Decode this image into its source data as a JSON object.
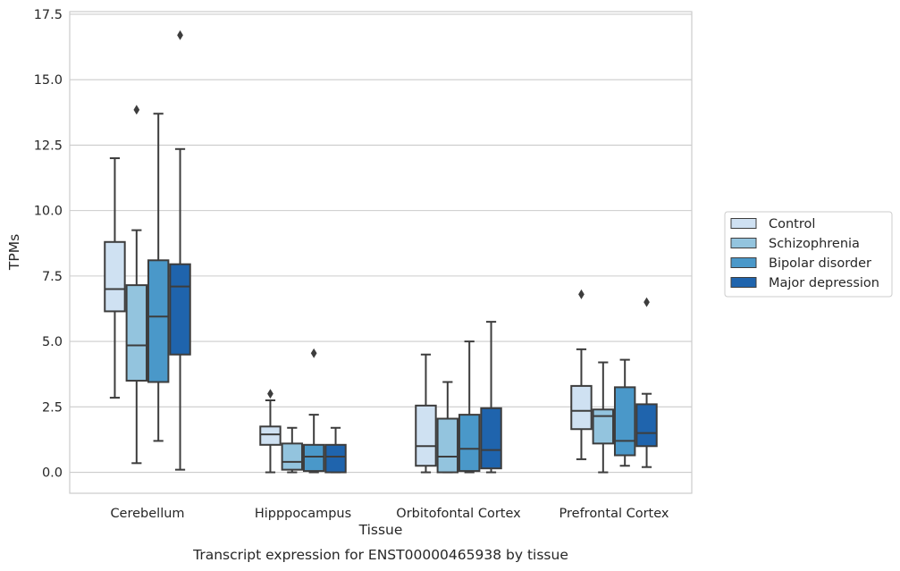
{
  "chart_data": {
    "type": "box",
    "title": "",
    "caption": "Transcript expression for ENST00000465938 by tissue",
    "xlabel": "Tissue",
    "ylabel": "TPMs",
    "ylim": [
      -0.8,
      17.6
    ],
    "yticks": [
      "0.0",
      "2.5",
      "5.0",
      "7.5",
      "10.0",
      "12.5",
      "15.0",
      "17.5"
    ],
    "ytick_values": [
      0,
      2.5,
      5,
      7.5,
      10,
      12.5,
      15,
      17.5
    ],
    "grid": "horizontal",
    "legend_placement": "center-right, outside",
    "categories": [
      "Cerebellum",
      "Hipppocampus",
      "Orbitofontal Cortex",
      "Prefrontal Cortex"
    ],
    "series": [
      {
        "name": "Control",
        "color": "#cfe1f2",
        "boxes": [
          {
            "whisker_low": 2.85,
            "q1": 6.15,
            "median": 7.0,
            "q3": 8.8,
            "whisker_high": 12.0,
            "outliers": []
          },
          {
            "whisker_low": 0.0,
            "q1": 1.05,
            "median": 1.45,
            "q3": 1.75,
            "whisker_high": 2.75,
            "outliers": [
              3.0
            ]
          },
          {
            "whisker_low": 0.0,
            "q1": 0.25,
            "median": 1.0,
            "q3": 2.55,
            "whisker_high": 4.5,
            "outliers": []
          },
          {
            "whisker_low": 0.5,
            "q1": 1.65,
            "median": 2.35,
            "q3": 3.3,
            "whisker_high": 4.7,
            "outliers": [
              6.8
            ]
          }
        ]
      },
      {
        "name": "Schizophrenia",
        "color": "#93c4de",
        "boxes": [
          {
            "whisker_low": 0.35,
            "q1": 3.5,
            "median": 4.85,
            "q3": 7.15,
            "whisker_high": 9.25,
            "outliers": [
              13.85
            ]
          },
          {
            "whisker_low": 0.0,
            "q1": 0.1,
            "median": 0.4,
            "q3": 1.1,
            "whisker_high": 1.7,
            "outliers": []
          },
          {
            "whisker_low": 0.0,
            "q1": 0.0,
            "median": 0.6,
            "q3": 2.05,
            "whisker_high": 3.45,
            "outliers": []
          },
          {
            "whisker_low": 0.0,
            "q1": 1.1,
            "median": 2.15,
            "q3": 2.4,
            "whisker_high": 4.2,
            "outliers": []
          }
        ]
      },
      {
        "name": "Bipolar disorder",
        "color": "#4a98c9",
        "boxes": [
          {
            "whisker_low": 1.2,
            "q1": 3.45,
            "median": 5.95,
            "q3": 8.1,
            "whisker_high": 13.7,
            "outliers": []
          },
          {
            "whisker_low": 0.0,
            "q1": 0.05,
            "median": 0.6,
            "q3": 1.05,
            "whisker_high": 2.2,
            "outliers": [
              4.55
            ]
          },
          {
            "whisker_low": 0.0,
            "q1": 0.05,
            "median": 0.9,
            "q3": 2.2,
            "whisker_high": 5.0,
            "outliers": []
          },
          {
            "whisker_low": 0.25,
            "q1": 0.65,
            "median": 1.2,
            "q3": 3.25,
            "whisker_high": 4.3,
            "outliers": []
          }
        ]
      },
      {
        "name": "Major depression",
        "color": "#1f64ad",
        "boxes": [
          {
            "whisker_low": 0.1,
            "q1": 4.5,
            "median": 7.1,
            "q3": 7.95,
            "whisker_high": 12.35,
            "outliers": [
              16.7
            ]
          },
          {
            "whisker_low": 0.0,
            "q1": 0.0,
            "median": 0.6,
            "q3": 1.05,
            "whisker_high": 1.7,
            "outliers": []
          },
          {
            "whisker_low": 0.0,
            "q1": 0.15,
            "median": 0.85,
            "q3": 2.45,
            "whisker_high": 5.75,
            "outliers": []
          },
          {
            "whisker_low": 0.2,
            "q1": 1.0,
            "median": 1.5,
            "q3": 2.6,
            "whisker_high": 3.0,
            "outliers": [
              6.5
            ]
          }
        ]
      }
    ]
  }
}
